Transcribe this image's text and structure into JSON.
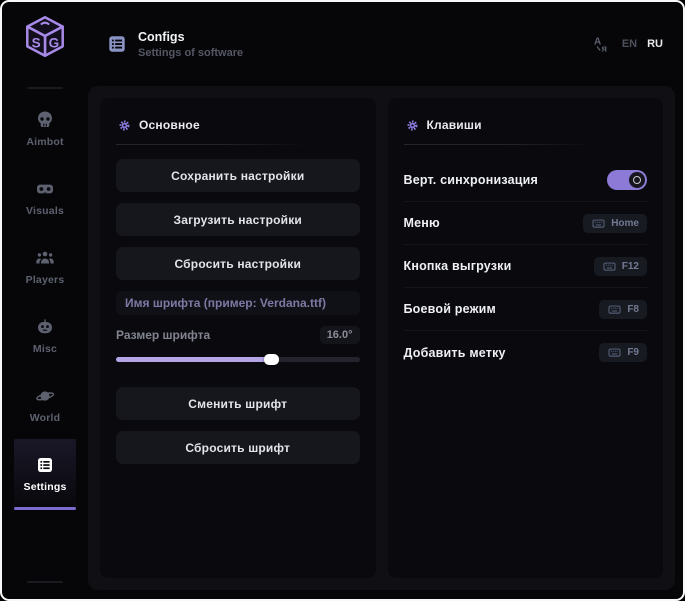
{
  "window": {
    "lang_options": [
      "EN",
      "RU"
    ],
    "active_lang": "RU"
  },
  "logo": {
    "letters": [
      "S",
      "G"
    ]
  },
  "header": {
    "title": "Configs",
    "subtitle": "Settings of software"
  },
  "sidebar": {
    "items": [
      {
        "label": "Aimbot",
        "icon": "skull-icon",
        "active": false
      },
      {
        "label": "Visuals",
        "icon": "goggles-icon",
        "active": false
      },
      {
        "label": "Players",
        "icon": "players-icon",
        "active": false
      },
      {
        "label": "Misc",
        "icon": "robot-face-icon",
        "active": false
      },
      {
        "label": "World",
        "icon": "planet-icon",
        "active": false
      },
      {
        "label": "Settings",
        "icon": "list-icon",
        "active": true
      }
    ]
  },
  "main_panel": {
    "title": "Основное",
    "save_button": "Сохранить настройки",
    "load_button": "Загрузить настройки",
    "reset_button": "Сбросить настройки",
    "font_name_placeholder": "Имя шрифта (пример: Verdana.ttf)",
    "font_size_label": "Размер шрифта",
    "font_size_value": "16.0°",
    "font_size_percent": 64,
    "change_font_button": "Сменить шрифт",
    "reset_font_button": "Сбросить шрифт"
  },
  "keys_panel": {
    "title": "Клавиши",
    "rows": [
      {
        "label": "Верт. синхронизация",
        "type": "toggle",
        "enabled": true
      },
      {
        "label": "Меню",
        "type": "keybind",
        "key": "Home"
      },
      {
        "label": "Кнопка выгрузки",
        "type": "keybind",
        "key": "F12"
      },
      {
        "label": "Боевой режим",
        "type": "keybind",
        "key": "F8"
      },
      {
        "label": "Добавить метку",
        "type": "keybind",
        "key": "F9"
      }
    ]
  },
  "colors": {
    "accent_purple": "#8c7ad6",
    "slider_fill": "#b3a5e6",
    "logo_purple": "#a78ae8",
    "active_underline": "#7c6bd0",
    "header_icon_blue": "#8a93c4",
    "panel_bg": "#0a0a0e",
    "card_bg": "#0f0f14",
    "page_bg": "#060608"
  }
}
